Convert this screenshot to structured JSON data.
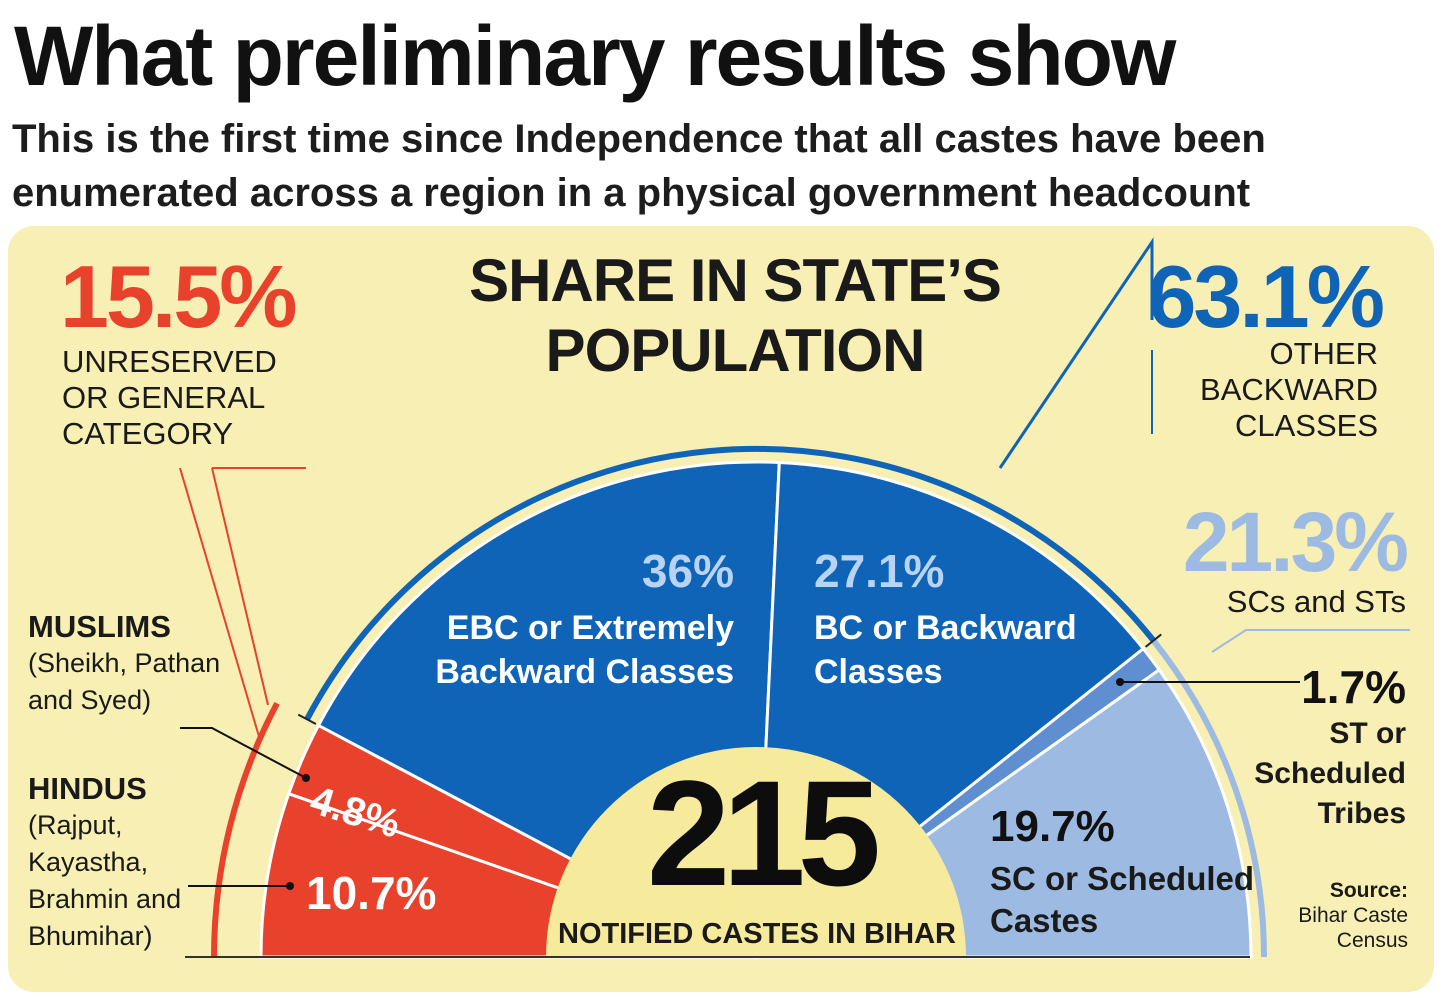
{
  "header": {
    "title": "What preliminary results show",
    "subtitle": "This is the first time since Independence that all castes have been enumerated across a region in a physical government headcount"
  },
  "colors": {
    "red": "#e8412c",
    "blue": "#0f64b8",
    "light_blue": "#9dbbe2",
    "mid_blue": "#5f8fd0",
    "panel": "#f7efb3",
    "center": "#f6ea9d"
  },
  "chart_data": {
    "type": "pie",
    "variant": "semicircle",
    "title": "SHARE IN STATE’S POPULATION",
    "slices": [
      {
        "label": "Hindus (Rajput, Kayastha, Brahmin and Bhumihar)",
        "value": 10.7,
        "group": "unreserved"
      },
      {
        "label": "Muslims (Sheikh, Pathan and Syed)",
        "value": 4.8,
        "group": "unreserved"
      },
      {
        "label": "EBC or Extremely Backward Classes",
        "value": 36,
        "group": "obc"
      },
      {
        "label": "BC or Backward Classes",
        "value": 27.1,
        "group": "obc"
      },
      {
        "label": "ST or Scheduled Tribes",
        "value": 1.7,
        "group": "sc_st"
      },
      {
        "label": "SC or Scheduled Castes",
        "value": 19.7,
        "group": "sc_st"
      }
    ],
    "groups": [
      {
        "name": "unreserved",
        "label": "UNRESERVED OR GENERAL CATEGORY",
        "value": 15.5
      },
      {
        "name": "obc",
        "label": "OTHER BACKWARD CLASSES",
        "value": 63.1
      },
      {
        "name": "sc_st",
        "label": "SCs and STs",
        "value": 21.3
      }
    ],
    "center_value": "215",
    "center_label": "NOTIFIED CASTES IN BIHAR"
  },
  "labels": {
    "chart_title_line1": "SHARE IN STATE’S",
    "chart_title_line2": "POPULATION",
    "unreserved_pct": "15.5%",
    "unreserved_l1": "UNRESERVED",
    "unreserved_l2": "OR GENERAL",
    "unreserved_l3": "CATEGORY",
    "obc_pct": "63.1%",
    "obc_l1": "OTHER",
    "obc_l2": "BACKWARD",
    "obc_l3": "CLASSES",
    "scst_pct": "21.3%",
    "scst_label": "SCs and STs",
    "ebc_pct": "36%",
    "ebc_l1": "EBC or Extremely",
    "ebc_l2": "Backward Classes",
    "bc_pct": "27.1%",
    "bc_l1": "BC or Backward",
    "bc_l2": "Classes",
    "st_pct": "1.7%",
    "st_l1": "ST or",
    "st_l2": "Scheduled",
    "st_l3": "Tribes",
    "sc_pct": "19.7%",
    "sc_l1": "SC or Scheduled",
    "sc_l2": "Castes",
    "muslim_pct": "4.8%",
    "hindu_pct": "10.7%",
    "muslims_title": "MUSLIMS",
    "muslims_l1": "(Sheikh, Pathan",
    "muslims_l2": "and Syed)",
    "hindus_title": "HINDUS",
    "hindus_l1": "(Rajput,",
    "hindus_l2": "Kayastha,",
    "hindus_l3": "Brahmin and",
    "hindus_l4": "Bhumihar)",
    "center_number": "215",
    "center_caption": "NOTIFIED CASTES IN BIHAR",
    "source_title": "Source:",
    "source_l1": "Bihar Caste",
    "source_l2": "Census"
  }
}
